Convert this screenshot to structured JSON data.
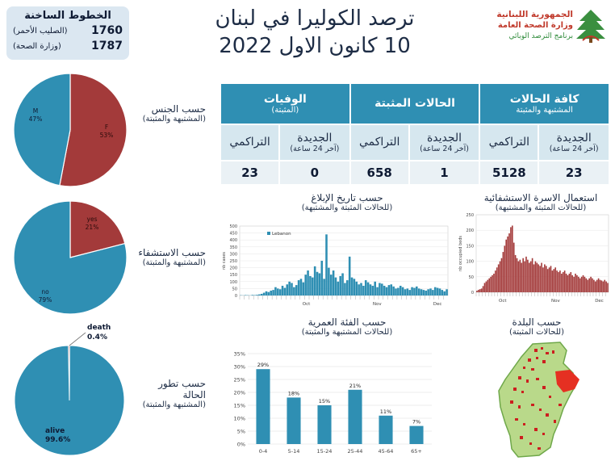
{
  "hotlines": {
    "title": "الخطوط الساخنة",
    "items": [
      {
        "number": "1760",
        "label": "(الصليب الأحمر)"
      },
      {
        "number": "1787",
        "label": "(وزارة الصحة)"
      }
    ]
  },
  "header": {
    "title_line1": "ترصد الكوليرا في لبنان",
    "title_line2": "10 كانون الاول 2022"
  },
  "logo": {
    "line1": "الجمهورية اللبنانية",
    "line2": "وزارة الصحة العامة",
    "line3": "برنامج الترصد الوبائي",
    "icon": "cedar-icon"
  },
  "stats": {
    "groups": [
      {
        "title": "كافة الحالات",
        "subtitle": "المشتبهة والمثبتة"
      },
      {
        "title": "الحالات المثبتة",
        "subtitle": ""
      },
      {
        "title": "الوفيات",
        "subtitle": "(المثبتة)"
      }
    ],
    "new_label": "الجديدة",
    "new_sub": "(آخر 24 ساعة)",
    "cumulative_label": "التراكمي",
    "values": {
      "all_new": "23",
      "all_cum": "5128",
      "conf_new": "1",
      "conf_cum": "658",
      "death_new": "0",
      "death_cum": "23"
    }
  },
  "pies": {
    "sex": {
      "label": "حسب الجنس",
      "sub": "(المشتبهة والمثبتة)"
    },
    "hosp": {
      "label": "حسب الاستشفاء",
      "sub": "(المشتبهة والمثبتة)"
    },
    "outcome": {
      "label": "حسب تطور الحالة",
      "sub": "(المشتبهة والمثبتة)"
    }
  },
  "epi_title": {
    "t": "حسب تاريخ الإبلاغ",
    "s": "(للحالات المثبتة والمشتبهة)"
  },
  "hosp_title": {
    "t": "استعمال الاسرة الاستشفائية",
    "s": "(للحالات المثبتة والمشتبهة)"
  },
  "age_title": {
    "t": "حسب الفئة العمرية",
    "s": "(للحالات المشتبهة والمثبتة)"
  },
  "map_title": {
    "t": "حسب البلدة",
    "s": "(للحالات المثبتة)"
  },
  "colors": {
    "teal": "#2f8fb3",
    "red": "#a33a3a",
    "map_green": "#b9d98a",
    "map_dots": "#cc1f1f"
  },
  "chart_data": [
    {
      "type": "pie",
      "id": "sex",
      "slices": [
        {
          "label": "F",
          "value": 53,
          "text": "F\n53%"
        },
        {
          "label": "M",
          "value": 47,
          "text": "M\n47%"
        }
      ]
    },
    {
      "type": "pie",
      "id": "hosp",
      "slices": [
        {
          "label": "yes",
          "value": 21,
          "text": "yes\n21%"
        },
        {
          "label": "no",
          "value": 79,
          "text": "no\n79%"
        }
      ]
    },
    {
      "type": "pie",
      "id": "outcome",
      "slices": [
        {
          "label": "death",
          "value": 0.4,
          "text": "0.4%"
        },
        {
          "label": "alive",
          "value": 99.6,
          "text": "99.6%"
        }
      ]
    },
    {
      "type": "bar",
      "id": "epicurve",
      "legend": "Lebanon",
      "ylim": [
        0,
        500
      ],
      "yticks": [
        "0",
        "50",
        "100",
        "150",
        "200",
        "250",
        "300",
        "350",
        "400",
        "450",
        "500"
      ],
      "ylabel": "nb cases",
      "month_labels": [
        "Oct",
        "Nov",
        "Dec"
      ],
      "values": [
        2,
        1,
        3,
        2,
        1,
        4,
        3,
        5,
        8,
        12,
        20,
        30,
        25,
        35,
        40,
        60,
        50,
        45,
        70,
        55,
        80,
        100,
        90,
        60,
        75,
        110,
        120,
        95,
        150,
        180,
        140,
        130,
        210,
        170,
        160,
        250,
        120,
        440,
        200,
        150,
        180,
        130,
        100,
        140,
        160,
        90,
        110,
        280,
        130,
        120,
        100,
        80,
        90,
        70,
        110,
        95,
        80,
        70,
        100,
        60,
        90,
        85,
        70,
        60,
        75,
        80,
        65,
        50,
        55,
        70,
        60,
        45,
        50,
        40,
        60,
        55,
        65,
        50,
        45,
        40,
        35,
        45,
        50,
        40,
        60,
        55,
        50,
        40,
        30,
        45
      ]
    },
    {
      "type": "bar",
      "id": "beds",
      "ylim": [
        0,
        250
      ],
      "yticks": [
        "0",
        "50",
        "100",
        "150",
        "200",
        "250"
      ],
      "ylabel": "nb occupied beds",
      "month_labels": [
        "Oct",
        "Nov",
        "Dec"
      ],
      "values": [
        5,
        8,
        10,
        12,
        20,
        30,
        35,
        40,
        45,
        50,
        55,
        60,
        70,
        80,
        90,
        100,
        110,
        130,
        150,
        170,
        180,
        190,
        210,
        215,
        160,
        120,
        110,
        100,
        105,
        95,
        110,
        100,
        115,
        105,
        95,
        100,
        110,
        90,
        100,
        95,
        90,
        85,
        95,
        80,
        90,
        85,
        75,
        80,
        85,
        70,
        75,
        80,
        70,
        65,
        70,
        60,
        65,
        70,
        60,
        55,
        60,
        65,
        55,
        50,
        60,
        55,
        50,
        45,
        50,
        55,
        50,
        45,
        40,
        45,
        50,
        45,
        40,
        35,
        40,
        45,
        40,
        38,
        35,
        40,
        35,
        30
      ]
    },
    {
      "type": "bar",
      "id": "age",
      "categories": [
        "0-4",
        "5-14",
        "15-24",
        "25-44",
        "45-64",
        "65+"
      ],
      "values": [
        29,
        18,
        15,
        21,
        11,
        7
      ],
      "labels": [
        "29%",
        "18%",
        "15%",
        "21%",
        "11%",
        "7%"
      ],
      "ylim": [
        0,
        35
      ],
      "yticks": [
        "0%",
        "5%",
        "10%",
        "15%",
        "20%",
        "25%",
        "30%",
        "35%"
      ]
    }
  ]
}
